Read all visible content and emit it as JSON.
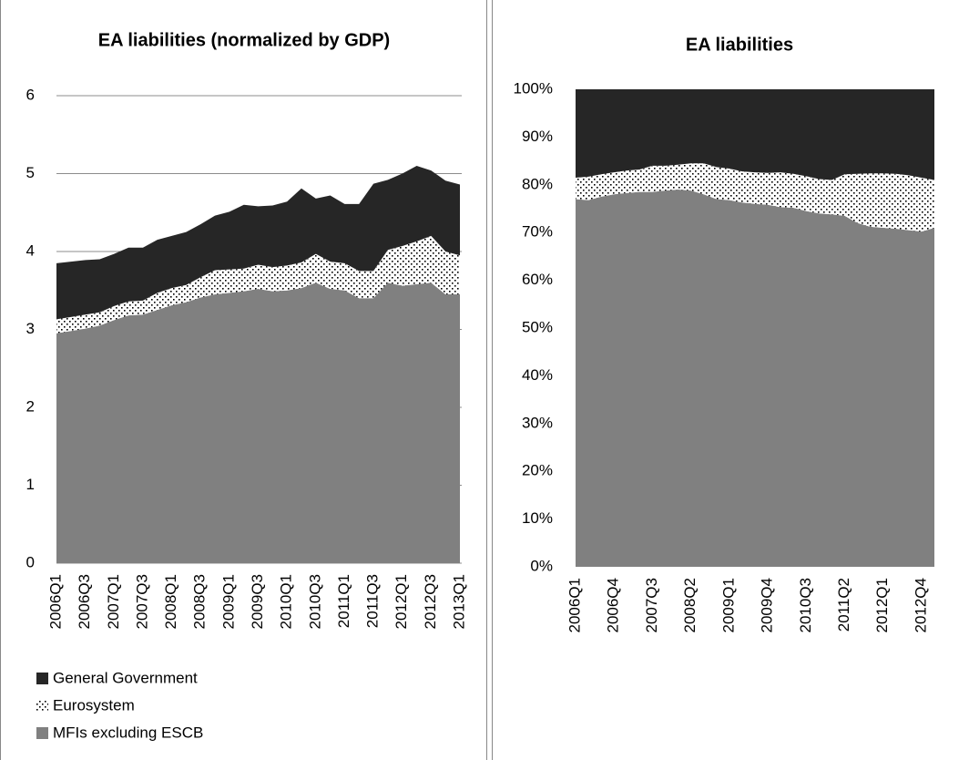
{
  "chart_data": [
    {
      "type": "stacked-area",
      "title": "EA liabilities (normalized by GDP)",
      "categories": [
        "2006Q1",
        null,
        "2006Q3",
        null,
        "2007Q1",
        null,
        "2007Q3",
        null,
        "2008Q1",
        null,
        "2008Q3",
        null,
        "2009Q1",
        null,
        "2009Q3",
        null,
        "2010Q1",
        null,
        "2010Q3",
        null,
        "2011Q1",
        null,
        "2011Q3",
        null,
        "2012Q1",
        null,
        "2012Q3",
        null,
        "2013Q1"
      ],
      "series": [
        {
          "name": "MFIs excluding ESCB",
          "color": "#808080",
          "values": [
            2.95,
            2.98,
            3.01,
            3.05,
            3.12,
            3.18,
            3.19,
            3.25,
            3.31,
            3.35,
            3.41,
            3.45,
            3.47,
            3.49,
            3.52,
            3.49,
            3.5,
            3.53,
            3.6,
            3.52,
            3.5,
            3.4,
            3.4,
            3.6,
            3.56,
            3.58,
            3.6,
            3.45,
            3.45
          ]
        },
        {
          "name": "Eurosystem",
          "color": "#000000",
          "pattern": "dots",
          "values": [
            0.18,
            0.18,
            0.18,
            0.17,
            0.18,
            0.18,
            0.18,
            0.22,
            0.22,
            0.22,
            0.26,
            0.31,
            0.3,
            0.29,
            0.31,
            0.31,
            0.32,
            0.33,
            0.37,
            0.35,
            0.35,
            0.35,
            0.35,
            0.42,
            0.51,
            0.55,
            0.6,
            0.55,
            0.5
          ]
        },
        {
          "name": "General Government",
          "color": "#262626",
          "values": [
            0.72,
            0.71,
            0.7,
            0.68,
            0.67,
            0.69,
            0.68,
            0.68,
            0.67,
            0.68,
            0.68,
            0.7,
            0.74,
            0.82,
            0.75,
            0.79,
            0.82,
            0.95,
            0.71,
            0.85,
            0.76,
            0.86,
            1.12,
            0.9,
            0.93,
            0.97,
            0.84,
            0.91,
            0.91
          ]
        }
      ],
      "ylim": [
        0,
        6
      ],
      "yticks": [
        0,
        1,
        2,
        3,
        4,
        5,
        6
      ],
      "grid": true,
      "legend": "bottom"
    },
    {
      "type": "stacked-area",
      "title": "EA liabilities",
      "categories": [
        "2006Q1",
        null,
        null,
        "2006Q4",
        null,
        null,
        "2007Q3",
        null,
        null,
        "2008Q2",
        null,
        null,
        "2009Q1",
        null,
        null,
        "2009Q4",
        null,
        null,
        "2010Q3",
        null,
        null,
        "2011Q2",
        null,
        null,
        "2012Q1",
        null,
        null,
        "2012Q4",
        null
      ],
      "series": [
        {
          "color": "#808080",
          "values": [
            77,
            76.8,
            77.5,
            78,
            78.3,
            78.5,
            78.5,
            78.8,
            79,
            78.8,
            78,
            77,
            76.8,
            76.3,
            76,
            75.8,
            75.3,
            75.2,
            74.5,
            74,
            73.8,
            73.5,
            72,
            71.2,
            71,
            70.8,
            70.5,
            70.2,
            71
          ]
        },
        {
          "color": "#000000",
          "pattern": "dots",
          "values": [
            4.5,
            4.9,
            4.7,
            4.6,
            4.7,
            4.7,
            5.5,
            5.2,
            5.2,
            5.7,
            6.5,
            6.7,
            6.6,
            6.5,
            6.6,
            6.7,
            7.3,
            7.1,
            7.3,
            7.2,
            7.2,
            8.7,
            10.3,
            11.2,
            11.4,
            11.5,
            11.5,
            11.3,
            10
          ]
        },
        {
          "color": "#262626",
          "values": [
            18.5,
            18.3,
            17.8,
            17.4,
            17,
            16.8,
            16,
            16,
            15.8,
            15.5,
            15.5,
            16.3,
            16.6,
            17.2,
            17.4,
            17.5,
            17.4,
            17.7,
            18.2,
            18.8,
            19,
            17.8,
            17.7,
            17.6,
            17.6,
            17.7,
            18,
            18.5,
            19
          ]
        }
      ],
      "ylim": [
        0,
        100
      ],
      "yticks": [
        {
          "value": 0,
          "label": "0%"
        },
        {
          "value": 10,
          "label": "10%"
        },
        {
          "value": 20,
          "label": "20%"
        },
        {
          "value": 30,
          "label": "30%"
        },
        {
          "value": 40,
          "label": "40%"
        },
        {
          "value": 50,
          "label": "50%"
        },
        {
          "value": 60,
          "label": "60%"
        },
        {
          "value": 70,
          "label": "70%"
        },
        {
          "value": 80,
          "label": "80%"
        },
        {
          "value": 90,
          "label": "90%"
        },
        {
          "value": 100,
          "label": "100%"
        }
      ],
      "grid": false
    }
  ]
}
